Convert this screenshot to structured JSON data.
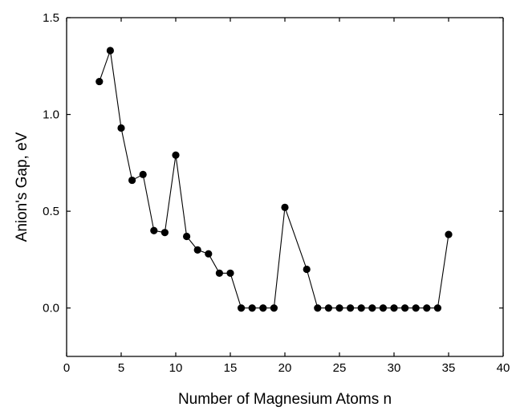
{
  "chart_data": {
    "type": "line",
    "title": "",
    "xlabel": "Number of Magnesium Atoms n",
    "ylabel": "Anion's Gap, eV",
    "xlim": [
      0,
      40
    ],
    "ylim": [
      -0.25,
      1.5
    ],
    "xticks": [
      0,
      5,
      10,
      15,
      20,
      25,
      30,
      35,
      40
    ],
    "xtick_labels": [
      "0",
      "5",
      "10",
      "15",
      "20",
      "25",
      "30",
      "35",
      "40"
    ],
    "yticks": [
      0.0,
      0.5,
      1.0,
      1.5
    ],
    "ytick_labels": [
      "0.0",
      "0.5",
      "1.0",
      "1.5"
    ],
    "grid": false,
    "markers": "filled-circle",
    "color": "#000000",
    "series": [
      {
        "x": [
          3,
          4,
          5,
          6,
          7,
          8,
          9,
          10,
          11,
          12,
          13,
          14,
          15,
          16,
          17,
          18,
          19,
          20,
          22,
          23,
          24,
          25,
          26,
          27,
          28,
          29,
          30,
          31,
          32,
          33,
          34,
          35
        ],
        "y": [
          1.17,
          1.33,
          0.93,
          0.66,
          0.69,
          0.4,
          0.39,
          0.79,
          0.37,
          0.3,
          0.28,
          0.18,
          0.18,
          0.0,
          0.0,
          0.0,
          0.0,
          0.52,
          0.2,
          0.0,
          0.0,
          0.0,
          0.0,
          0.0,
          0.0,
          0.0,
          0.0,
          0.0,
          0.0,
          0.0,
          0.0,
          0.38
        ]
      }
    ]
  }
}
